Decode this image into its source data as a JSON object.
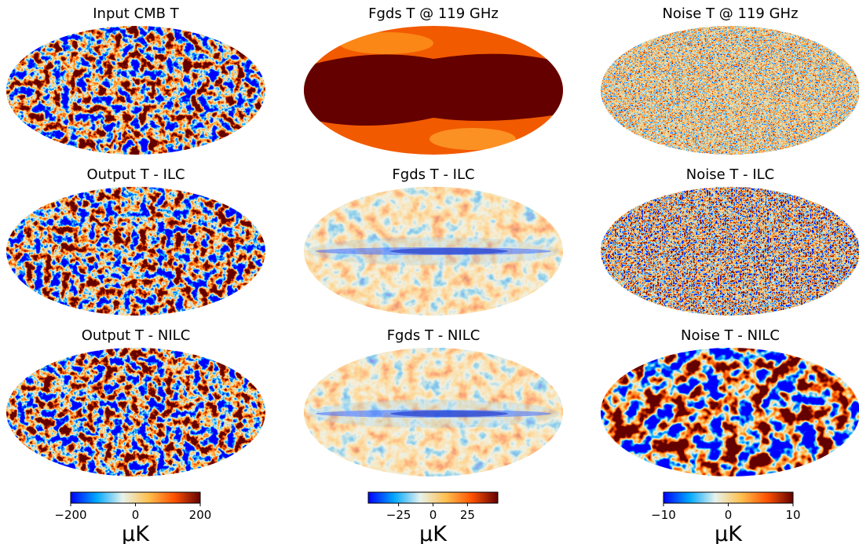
{
  "panels": [
    "Input CMB T",
    "Fgds T @ 119 GHz",
    "Noise T @ 119 GHz",
    "Output T - ILC",
    "Fgds T - ILC",
    "Noise T - ILC",
    "Output T - NILC",
    "Fgds T - NILC",
    "Noise T - NILC"
  ],
  "colormap": [
    "#0000ff",
    "#00a8ff",
    "#e6f2ec",
    "#ffc04f",
    "#ff5200",
    "#640000"
  ],
  "colorbars": [
    {
      "lim": [
        -200,
        200
      ],
      "ticks": [
        {
          "value": -200,
          "label": "−200"
        },
        0,
        200
      ],
      "label": "μK"
    },
    {
      "lim": [
        -47,
        47
      ],
      "ticks": [
        {
          "value": -25,
          "label": "−25"
        },
        0,
        25
      ],
      "label": "μK"
    },
    {
      "lim": [
        -10,
        10
      ],
      "ticks": [
        {
          "value": -10,
          "label": "−10"
        },
        0,
        10
      ],
      "label": "μK"
    }
  ]
}
